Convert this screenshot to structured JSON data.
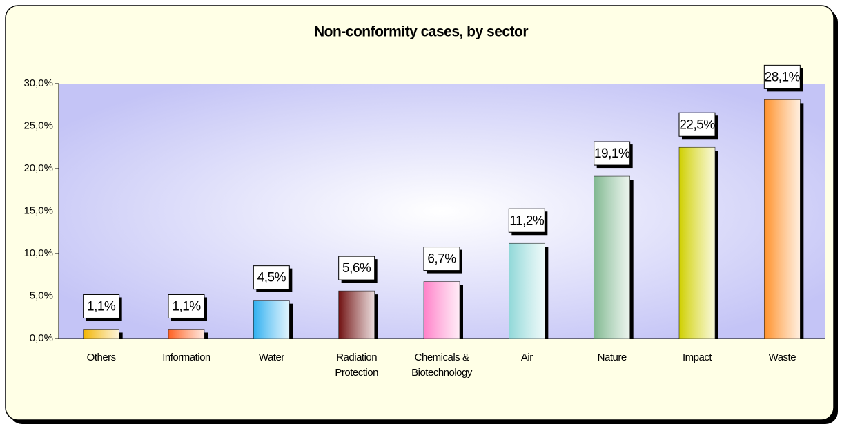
{
  "chart_data": {
    "type": "bar",
    "title": "Non-conformity cases, by sector",
    "categories": [
      "Others",
      "Information",
      "Water",
      "Radiation\nProtection",
      "Chemicals &\nBiotechnology",
      "Air",
      "Nature",
      "Impact",
      "Waste"
    ],
    "values": [
      1.1,
      1.1,
      4.5,
      5.6,
      6.7,
      11.2,
      19.1,
      22.5,
      28.1
    ],
    "value_labels": [
      "1,1%",
      "1,1%",
      "4,5%",
      "5,6%",
      "6,7%",
      "11,2%",
      "19,1%",
      "22,5%",
      "28,1%"
    ],
    "colors": [
      "#f2b400",
      "#ff6020",
      "#30b0f0",
      "#701010",
      "#ff80c8",
      "#90d8d8",
      "#80b890",
      "#d0d000",
      "#ff9028"
    ],
    "ylim": [
      0,
      30
    ],
    "yticks": [
      {
        "value": 0,
        "label": "0,0%"
      },
      {
        "value": 5,
        "label": "5,0%"
      },
      {
        "value": 10,
        "label": "10,0%"
      },
      {
        "value": 15,
        "label": "15,0%"
      },
      {
        "value": 20,
        "label": "20,0%"
      },
      {
        "value": 25,
        "label": "25,0%"
      },
      {
        "value": 30,
        "label": "30,0%"
      }
    ],
    "grid": false
  }
}
